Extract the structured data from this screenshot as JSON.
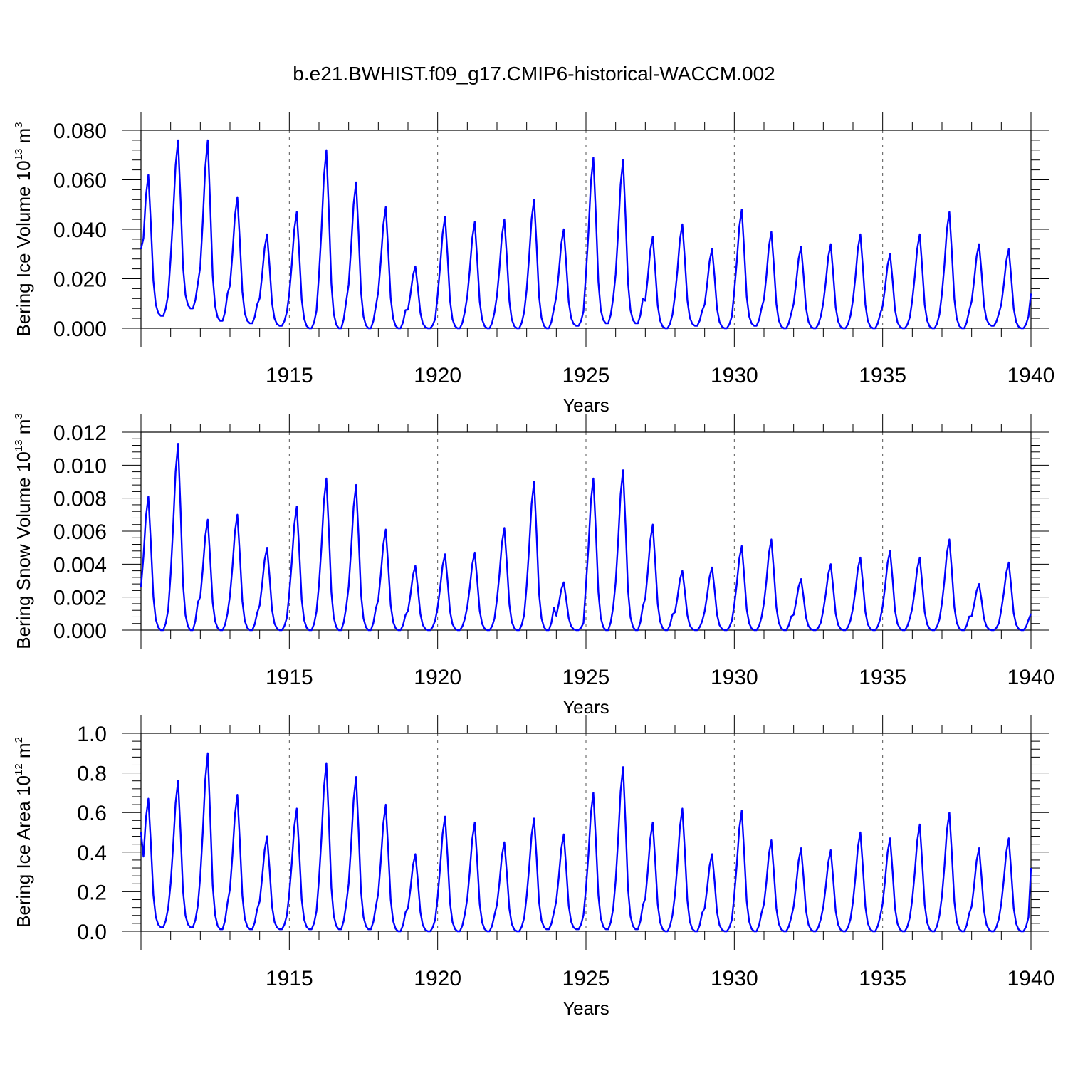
{
  "title": "b.e21.BWHIST.f09_g17.CMIP6-historical-WACCM.002",
  "chart_data": [
    {
      "type": "line",
      "ylabel": {
        "text": "Bering Ice Volume 10",
        "sup": "13",
        "unit": " m",
        "unit_sup": "3"
      },
      "xlabel": "Years",
      "xlim": [
        1910,
        1940
      ],
      "ylim": [
        0,
        0.08
      ],
      "x_ticks": [
        "1915",
        "1920",
        "1925",
        "1930",
        "1935",
        "1940"
      ],
      "y_ticks": [
        "0.000",
        "0.020",
        "0.040",
        "0.060",
        "0.080"
      ],
      "line_color": "#0000ff",
      "grid": "dashed vertical lines at 5-year ticks",
      "series": [
        {
          "annual_peaks": [
            0.062,
            0.076,
            0.076,
            0.053,
            0.038,
            0.047,
            0.072,
            0.059,
            0.049,
            0.025,
            0.045,
            0.043,
            0.044,
            0.052,
            0.04,
            0.069,
            0.068,
            0.037,
            0.042,
            0.032,
            0.048,
            0.039,
            0.033,
            0.034,
            0.038,
            0.03,
            0.038,
            0.047,
            0.034,
            0.032
          ],
          "annual_minima": [
            0.005,
            0.008,
            0.003,
            0.002,
            0.001,
            0.0,
            0.0,
            0.0,
            0.0,
            0.0,
            0.0,
            0.0,
            0.0,
            0.0,
            0.001,
            0.002,
            0.002,
            0.0,
            0.001,
            0.0,
            0.001,
            0.0,
            0.0,
            0.0,
            0.0,
            0.0,
            0.0,
            0.0,
            0.001,
            0.0
          ],
          "start_value": 0.032,
          "end_value": 0.014
        }
      ]
    },
    {
      "type": "line",
      "ylabel": {
        "text": "Bering Snow Volume 10",
        "sup": "13",
        "unit": " m",
        "unit_sup": "3"
      },
      "xlabel": "Years",
      "xlim": [
        1910,
        1940
      ],
      "ylim": [
        0,
        0.012
      ],
      "x_ticks": [
        "1915",
        "1920",
        "1925",
        "1930",
        "1935",
        "1940"
      ],
      "y_ticks": [
        "0.000",
        "0.002",
        "0.004",
        "0.006",
        "0.008",
        "0.010",
        "0.012"
      ],
      "line_color": "#0000ff",
      "grid": "dashed vertical lines at 5-year ticks",
      "series": [
        {
          "annual_peaks": [
            0.0081,
            0.0113,
            0.0067,
            0.007,
            0.005,
            0.0075,
            0.0092,
            0.0088,
            0.0061,
            0.0039,
            0.0046,
            0.0047,
            0.0062,
            0.009,
            0.0029,
            0.0092,
            0.0097,
            0.0064,
            0.0036,
            0.0038,
            0.0051,
            0.0055,
            0.0031,
            0.004,
            0.0044,
            0.0048,
            0.0044,
            0.0055,
            0.0028,
            0.0041
          ],
          "annual_minima": [
            0.0,
            0.0,
            0.0,
            0.0,
            0.0,
            0.0,
            0.0,
            0.0,
            0.0,
            0.0,
            0.0,
            0.0,
            0.0,
            0.0,
            0.0,
            0.0,
            0.0,
            0.0,
            0.0,
            0.0,
            0.0,
            0.0,
            0.0,
            0.0,
            0.0,
            0.0,
            0.0,
            0.0,
            0.0,
            0.0
          ],
          "start_value": 0.0026,
          "end_value": 0.001
        }
      ]
    },
    {
      "type": "line",
      "ylabel": {
        "text": "Bering Ice Area 10",
        "sup": "12",
        "unit": " m",
        "unit_sup": "2"
      },
      "xlabel": "Years",
      "xlim": [
        1910,
        1940
      ],
      "ylim": [
        0,
        1.0
      ],
      "x_ticks": [
        "1915",
        "1920",
        "1925",
        "1930",
        "1935",
        "1940"
      ],
      "y_ticks": [
        "0.0",
        "0.2",
        "0.4",
        "0.6",
        "0.8",
        "1.0"
      ],
      "line_color": "#0000ff",
      "grid": "dashed vertical lines at 5-year ticks",
      "series": [
        {
          "annual_peaks": [
            0.67,
            0.76,
            0.9,
            0.69,
            0.48,
            0.62,
            0.85,
            0.78,
            0.64,
            0.39,
            0.58,
            0.55,
            0.45,
            0.57,
            0.49,
            0.7,
            0.83,
            0.55,
            0.62,
            0.39,
            0.61,
            0.46,
            0.42,
            0.41,
            0.5,
            0.47,
            0.54,
            0.6,
            0.42,
            0.47
          ],
          "annual_minima": [
            0.02,
            0.02,
            0.01,
            0.01,
            0.01,
            0.01,
            0.01,
            0.01,
            0.0,
            0.0,
            0.0,
            0.0,
            0.0,
            0.01,
            0.01,
            0.01,
            0.01,
            0.0,
            0.0,
            0.0,
            0.0,
            0.0,
            0.0,
            0.0,
            0.0,
            0.0,
            0.0,
            0.0,
            0.0,
            0.0
          ],
          "start_value": 0.5,
          "end_value": 0.32
        }
      ]
    }
  ]
}
